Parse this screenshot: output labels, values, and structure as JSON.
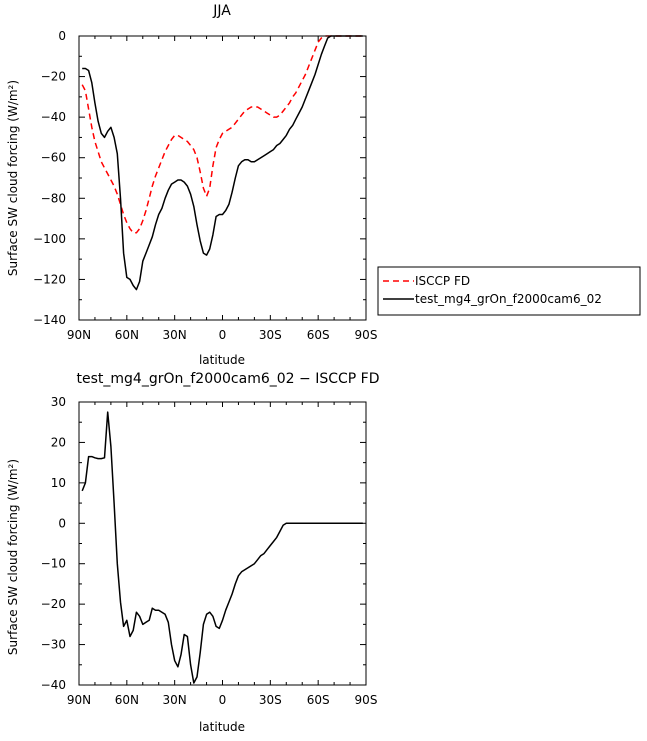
{
  "chart_data": [
    {
      "type": "line",
      "title": "JJA",
      "xlabel": "latitude",
      "ylabel": "Surface SW cloud forcing (W/m²)",
      "xlim": [
        90,
        -90
      ],
      "ylim": [
        -140,
        0
      ],
      "x_tick_values": [
        90,
        60,
        30,
        0,
        -30,
        -60,
        -90
      ],
      "x_tick_labels": [
        "90N",
        "60N",
        "30N",
        "0",
        "30S",
        "60S",
        "90S"
      ],
      "y_ticks": [
        0,
        -20,
        -40,
        -60,
        -80,
        -100,
        -120,
        -140
      ],
      "y_tick_labels": [
        "0",
        "−20",
        "−40",
        "−60",
        "−80",
        "−100",
        "−120",
        "−140"
      ],
      "legend_placement": "right, outside the plot",
      "series": [
        {
          "name": "ISCCP FD",
          "color": "#ff0000",
          "dash": "dashed",
          "x": [
            88,
            86,
            84,
            82,
            80,
            78,
            76,
            74,
            72,
            70,
            68,
            66,
            64,
            62,
            60,
            58,
            56,
            54,
            52,
            50,
            48,
            46,
            44,
            42,
            40,
            38,
            36,
            34,
            32,
            30,
            28,
            26,
            24,
            22,
            20,
            18,
            16,
            14,
            12,
            10,
            8,
            6,
            4,
            2,
            0,
            -2,
            -4,
            -6,
            -8,
            -10,
            -12,
            -14,
            -16,
            -18,
            -20,
            -22,
            -24,
            -26,
            -28,
            -30,
            -32,
            -34,
            -36,
            -38,
            -40,
            -42,
            -44,
            -46,
            -48,
            -50,
            -52,
            -54,
            -56,
            -58,
            -60,
            -62,
            -64,
            -66,
            -68,
            -70,
            -72,
            -74,
            -76,
            -78,
            -80,
            -82,
            -84,
            -86,
            -88
          ],
          "y": [
            -24,
            -27,
            -36,
            -45,
            -52,
            -57,
            -62,
            -65,
            -68,
            -71,
            -74,
            -78,
            -83,
            -88,
            -92,
            -95,
            -97,
            -97,
            -95,
            -91,
            -86,
            -80,
            -74,
            -69,
            -65,
            -61,
            -57,
            -54,
            -51,
            -49,
            -49,
            -50,
            -51,
            -52,
            -54,
            -56,
            -60,
            -67,
            -75,
            -79,
            -75,
            -64,
            -55,
            -51,
            -48,
            -47,
            -46,
            -45,
            -43,
            -41,
            -39,
            -37,
            -36,
            -35,
            -35,
            -35,
            -36,
            -37,
            -38,
            -39,
            -40,
            -40,
            -39,
            -37,
            -35,
            -33,
            -30,
            -28,
            -25,
            -22,
            -19,
            -15,
            -11,
            -7,
            -3,
            -1,
            0,
            0,
            0,
            0,
            0,
            0,
            0,
            0,
            0,
            0,
            0,
            0,
            0
          ]
        },
        {
          "name": "test_mg4_grOn_f2000cam6_02",
          "color": "#000000",
          "dash": "solid",
          "x": [
            88,
            86,
            84,
            82,
            80,
            78,
            76,
            74,
            72,
            70,
            68,
            66,
            64,
            62,
            60,
            58,
            56,
            54,
            52,
            50,
            48,
            46,
            44,
            42,
            40,
            38,
            36,
            34,
            32,
            30,
            28,
            26,
            24,
            22,
            20,
            18,
            16,
            14,
            12,
            10,
            8,
            6,
            4,
            2,
            0,
            -2,
            -4,
            -6,
            -8,
            -10,
            -12,
            -14,
            -16,
            -18,
            -20,
            -22,
            -24,
            -26,
            -28,
            -30,
            -32,
            -34,
            -36,
            -38,
            -40,
            -42,
            -44,
            -46,
            -48,
            -50,
            -52,
            -54,
            -56,
            -58,
            -60,
            -62,
            -64,
            -66,
            -68,
            -70,
            -72,
            -74,
            -76,
            -78,
            -80,
            -82,
            -84,
            -86,
            -88
          ],
          "y": [
            -16,
            -16,
            -17,
            -23,
            -33,
            -42,
            -48,
            -50,
            -47,
            -45,
            -50,
            -58,
            -80,
            -107,
            -119,
            -120,
            -123,
            -125,
            -121,
            -111,
            -107,
            -103,
            -99,
            -93,
            -88,
            -85,
            -80,
            -76,
            -73,
            -72,
            -71,
            -71,
            -72,
            -74,
            -78,
            -84,
            -93,
            -101,
            -107,
            -108,
            -105,
            -98,
            -89,
            -88,
            -88,
            -86,
            -83,
            -77,
            -70,
            -64,
            -62,
            -61,
            -61,
            -62,
            -62,
            -61,
            -60,
            -59,
            -58,
            -57,
            -56,
            -54,
            -53,
            -51,
            -49,
            -46,
            -44,
            -41,
            -38,
            -35,
            -31,
            -27,
            -23,
            -19,
            -14,
            -9,
            -5,
            -1,
            0,
            0,
            0,
            0,
            0,
            0,
            0,
            0,
            0,
            0,
            0
          ]
        }
      ]
    },
    {
      "type": "line",
      "title": "test_mg4_grOn_f2000cam6_02 − ISCCP FD",
      "xlabel": "latitude",
      "ylabel": "Surface SW cloud forcing (W/m²)",
      "xlim": [
        90,
        -90
      ],
      "ylim": [
        -40,
        30
      ],
      "x_tick_values": [
        90,
        60,
        30,
        0,
        -30,
        -60,
        -90
      ],
      "x_tick_labels": [
        "90N",
        "60N",
        "30N",
        "0",
        "30S",
        "60S",
        "90S"
      ],
      "y_ticks": [
        30,
        20,
        10,
        0,
        -10,
        -20,
        -30,
        -40
      ],
      "y_tick_labels": [
        "30",
        "20",
        "10",
        "0",
        "−10",
        "−20",
        "−30",
        "−40"
      ],
      "series": [
        {
          "color": "#000000",
          "dash": "solid",
          "x": [
            88,
            86,
            84,
            82,
            80,
            78,
            76,
            74,
            72,
            70,
            68,
            66,
            64,
            62,
            60,
            58,
            56,
            54,
            52,
            50,
            48,
            46,
            44,
            42,
            40,
            38,
            36,
            34,
            32,
            30,
            28,
            26,
            24,
            22,
            20,
            18,
            16,
            14,
            12,
            10,
            8,
            6,
            4,
            2,
            0,
            -2,
            -4,
            -6,
            -8,
            -10,
            -12,
            -14,
            -16,
            -18,
            -20,
            -22,
            -24,
            -26,
            -28,
            -30,
            -32,
            -34,
            -36,
            -38,
            -40,
            -42,
            -44,
            -46,
            -48,
            -50,
            -52,
            -54,
            -56,
            -58,
            -60,
            -62,
            -64,
            -66,
            -68,
            -70,
            -72,
            -74,
            -76,
            -78,
            -80,
            -82,
            -84,
            -86,
            -88
          ],
          "y": [
            8,
            10,
            16.5,
            16.5,
            16.2,
            16,
            16,
            16.2,
            27.5,
            19,
            5,
            -10,
            -19.5,
            -25.5,
            -24,
            -28,
            -26.5,
            -22,
            -23,
            -25,
            -24.5,
            -24,
            -21,
            -21.5,
            -21.5,
            -22,
            -22.5,
            -24.5,
            -30,
            -34,
            -35.5,
            -32.5,
            -27.5,
            -28,
            -35,
            -39.5,
            -38,
            -32,
            -25,
            -22.5,
            -22,
            -23,
            -25.5,
            -26,
            -24,
            -21.5,
            -19.5,
            -17.5,
            -15,
            -13,
            -12,
            -11.5,
            -11,
            -10.5,
            -10,
            -9,
            -8,
            -7.5,
            -6.5,
            -5.5,
            -4.5,
            -3.5,
            -2,
            -0.5,
            0,
            0,
            0,
            0,
            0,
            0,
            0,
            0,
            0,
            0,
            0,
            0,
            0,
            0,
            0,
            0,
            0,
            0,
            0,
            0,
            0,
            0,
            0,
            0,
            0
          ]
        }
      ]
    }
  ]
}
